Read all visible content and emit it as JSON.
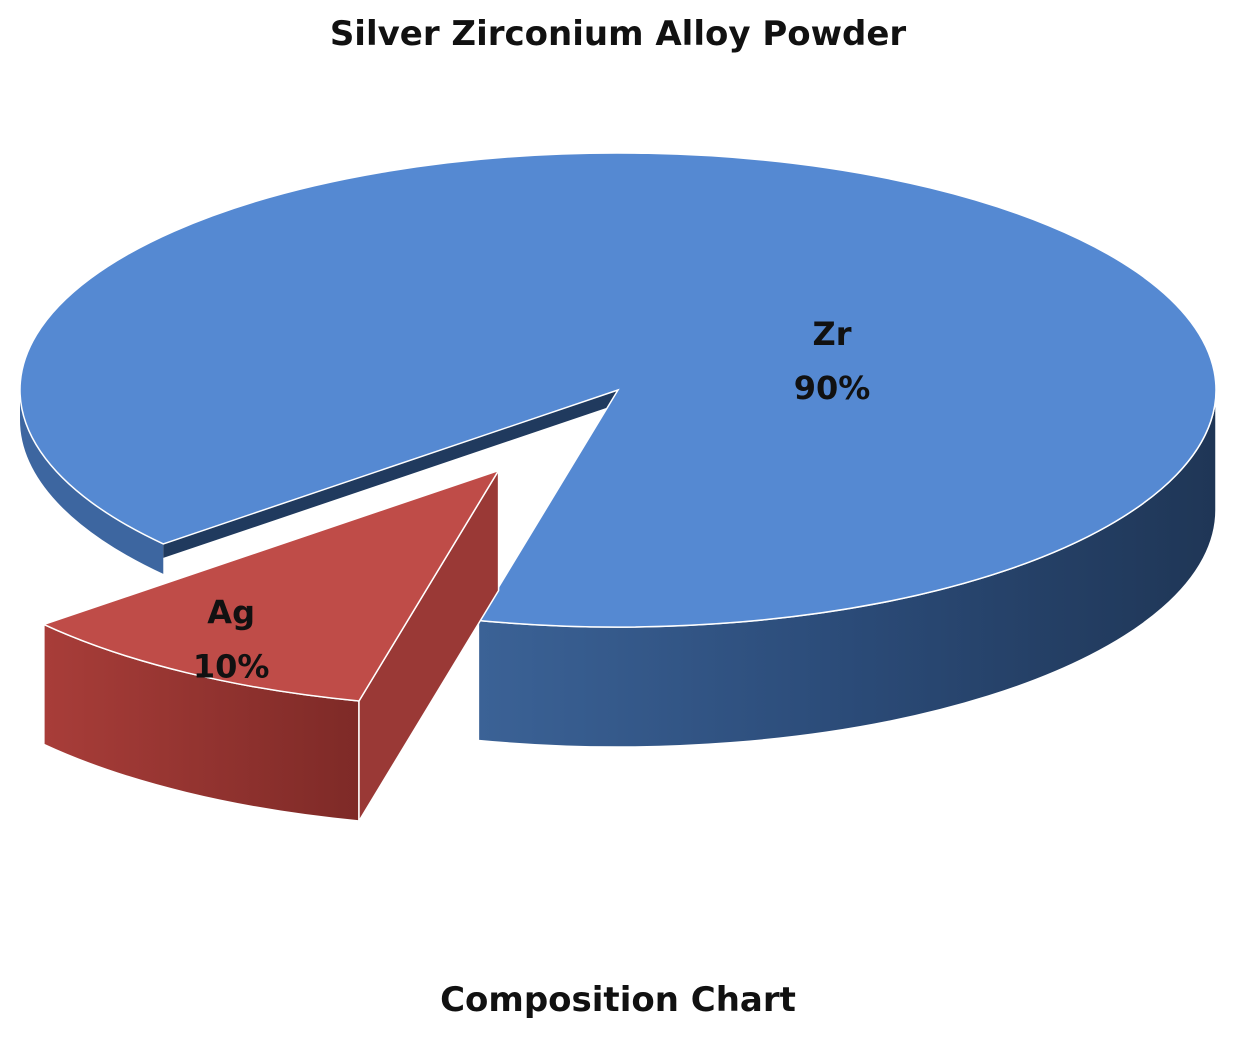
{
  "chart_data": {
    "type": "pie",
    "title": "Silver Zirconium Alloy Powder",
    "subtitle": "Composition Chart",
    "style": "3d-exploded",
    "slices": [
      {
        "name": "Zr",
        "value": 90,
        "label": "90%",
        "color": "#5589d2",
        "side_color": "#2a4a75"
      },
      {
        "name": "Ag",
        "value": 10,
        "label": "10%",
        "color": "#bf4c48",
        "side_color": "#8a302d",
        "exploded": true
      }
    ]
  }
}
